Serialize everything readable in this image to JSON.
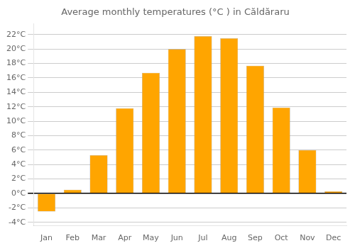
{
  "chart_data": {
    "type": "bar",
    "title": "Average monthly temperatures (°C ) in Căldăraru",
    "categories": [
      "Jan",
      "Feb",
      "Mar",
      "Apr",
      "May",
      "Jun",
      "Jul",
      "Aug",
      "Sep",
      "Oct",
      "Nov",
      "Dec"
    ],
    "values": [
      -2.5,
      0.5,
      5.3,
      11.8,
      16.7,
      20.0,
      21.8,
      21.5,
      17.7,
      11.9,
      6.0,
      0.3
    ],
    "color": "#FFA500",
    "ylim": [
      -4.5,
      23.5
    ],
    "yticks": [
      {
        "value": -4,
        "label": "-4°C"
      },
      {
        "value": -2,
        "label": "-2°C"
      },
      {
        "value": 0,
        "label": "0°C"
      },
      {
        "value": 2,
        "label": "2°C"
      },
      {
        "value": 4,
        "label": "4°C"
      },
      {
        "value": 6,
        "label": "6°C"
      },
      {
        "value": 8,
        "label": "8°C"
      },
      {
        "value": 10,
        "label": "10°C"
      },
      {
        "value": 12,
        "label": "12°C"
      },
      {
        "value": 14,
        "label": "14°C"
      },
      {
        "value": 16,
        "label": "16°C"
      },
      {
        "value": 18,
        "label": "18°C"
      },
      {
        "value": 20,
        "label": "20°C"
      },
      {
        "value": 22,
        "label": "22°C"
      }
    ],
    "grid": true
  }
}
